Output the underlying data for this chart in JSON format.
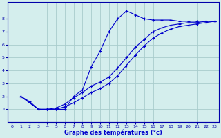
{
  "xlabel": "Graphe des températures (°c)",
  "background_color": "#d4eeed",
  "line_color": "#0000cc",
  "grid_color": "#a8cccc",
  "xlim": [
    -0.5,
    23.5
  ],
  "ylim": [
    0,
    9.3
  ],
  "xticks": [
    0,
    1,
    2,
    3,
    4,
    5,
    6,
    7,
    8,
    9,
    10,
    11,
    12,
    13,
    14,
    15,
    16,
    17,
    18,
    19,
    20,
    21,
    22,
    23
  ],
  "yticks": [
    1,
    2,
    3,
    4,
    5,
    6,
    7,
    8
  ],
  "line1_x": [
    1,
    2,
    3,
    4,
    5,
    6,
    7,
    8,
    9,
    10,
    11,
    12,
    13,
    14,
    15,
    16,
    17,
    18,
    19,
    20,
    21,
    22,
    23
  ],
  "line1_y": [
    2.0,
    1.6,
    1.0,
    1.0,
    1.0,
    1.0,
    2.0,
    2.5,
    4.3,
    5.5,
    7.0,
    8.0,
    8.6,
    8.3,
    8.0,
    7.9,
    7.9,
    7.9,
    7.8,
    7.8,
    7.8,
    7.8,
    7.8
  ],
  "line2_x": [
    1,
    3,
    4,
    5,
    6,
    7,
    8,
    9,
    10,
    11,
    12,
    13,
    14,
    15,
    16,
    17,
    18,
    19,
    20,
    21,
    22,
    23
  ],
  "line2_y": [
    2.0,
    1.0,
    1.0,
    1.1,
    1.4,
    1.9,
    2.3,
    2.8,
    3.1,
    3.5,
    4.2,
    5.0,
    5.8,
    6.4,
    7.0,
    7.3,
    7.5,
    7.6,
    7.7,
    7.7,
    7.8,
    7.8
  ],
  "line3_x": [
    1,
    3,
    4,
    5,
    6,
    7,
    8,
    9,
    10,
    11,
    12,
    13,
    14,
    15,
    16,
    17,
    18,
    19,
    20,
    21,
    22,
    23
  ],
  "line3_y": [
    2.0,
    1.0,
    1.0,
    1.0,
    1.2,
    1.5,
    1.9,
    2.3,
    2.6,
    3.0,
    3.6,
    4.4,
    5.2,
    5.9,
    6.5,
    6.9,
    7.2,
    7.4,
    7.5,
    7.6,
    7.7,
    7.8
  ]
}
